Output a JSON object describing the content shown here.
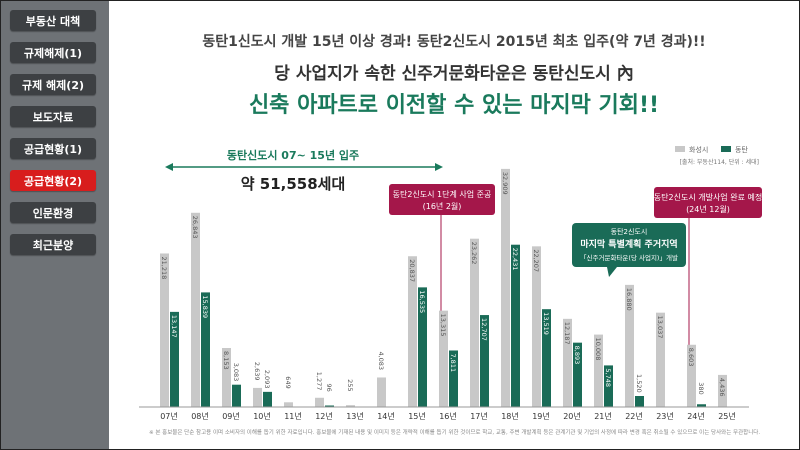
{
  "sidebar": {
    "items": [
      {
        "label": "부동산 대책",
        "active": false
      },
      {
        "label": "규제해제(1)",
        "active": false
      },
      {
        "label": "규제 해제(2)",
        "active": false
      },
      {
        "label": "보도자료",
        "active": false
      },
      {
        "label": "공급현황(1)",
        "active": false
      },
      {
        "label": "공급현황(2)",
        "active": true
      },
      {
        "label": "인문환경",
        "active": false
      },
      {
        "label": "최근분양",
        "active": false
      }
    ]
  },
  "headline": {
    "line1": "동탄1신도시 개발 15년 이상 경과! 동탄2신도시 2015년 최초 입주(약 7년 경과)!!",
    "line2": "당 사업지가 속한 신주거문화타운은 동탄신도시 內",
    "line3": "신축 아파트로 이전할 수 있는 마지막 기회!!"
  },
  "colors": {
    "hwaseong": "#c8c8c8",
    "dongtan": "#1a6b57",
    "callout": "#a4174a",
    "accent_text": "#1a7a5c"
  },
  "chart_data": {
    "type": "bar",
    "categories": [
      "07년",
      "08년",
      "09년",
      "10년",
      "11년",
      "12년",
      "13년",
      "14년",
      "15년",
      "16년",
      "17년",
      "18년",
      "19년",
      "20년",
      "21년",
      "22년",
      "23년",
      "24년",
      "25년"
    ],
    "series": [
      {
        "name": "화성시",
        "values": [
          21218,
          26843,
          8153,
          2639,
          649,
          1277,
          255,
          4083,
          20837,
          13315,
          23262,
          32909,
          22207,
          12187,
          10008,
          16880,
          13037,
          8603,
          4436
        ]
      },
      {
        "name": "동탄",
        "values": [
          13147,
          15839,
          3083,
          2093,
          null,
          96,
          null,
          null,
          16535,
          7811,
          12707,
          22431,
          13519,
          8893,
          5748,
          1520,
          null,
          380,
          null
        ]
      }
    ],
    "value_labels": {
      "화성시": [
        "21,218",
        "26,843",
        "8,153",
        "2,639",
        "649",
        "1,277",
        "255",
        "4,083",
        "20,837",
        "13,315",
        "23,262",
        "32,909",
        "22,207",
        "12,187",
        "10,008",
        "16,880",
        "13,037",
        "8,603",
        "4,436"
      ],
      "동탄": [
        "13,147",
        "15,839",
        "3,083",
        "2,093",
        "",
        "96",
        "",
        "",
        "16,535",
        "7,811",
        "12,707",
        "22,431",
        "13,519",
        "8,893",
        "5,748",
        "1,520",
        "",
        "380",
        ""
      ]
    },
    "ylim": [
      0,
      34000
    ],
    "legend": {
      "items": [
        "화성시",
        "동탄"
      ],
      "placement": "top-right"
    },
    "source_note": "[출처: 부동산114, 단위 : 세대]",
    "period_label": "동탄신도시 07~ 15년 입주",
    "period_value": "약 51,558세대",
    "callouts": [
      {
        "text_line1": "동탄2신도시 1단계 사업 준공",
        "text_line2": "(16년 2월)",
        "category": "16년"
      },
      {
        "text_line1": "동탄2신도시 개발사업 완료 예정",
        "text_line2": "(24년 12월)",
        "category": "24년"
      }
    ],
    "green_callout": {
      "line1": "동탄2신도시",
      "line2": "마지막 특별계획 주거지역",
      "line3": "「신주거문화타운(당 사업지)」개발"
    },
    "footnote": "※ 본 홍보물은 단순 참고용 이며 소비자의 이해를 돕기 위한 자료입니다. 홍보물에 기재된 내용 및 이미지 등은 개략적 이해를 돕기 위한 것이므로 학교, 교통, 주변 개발계획 등은 관계기관 및 기업의 사정에 따라 변경 혹은 취소될 수 있으므로 이는 당사와는 무관합니다."
  }
}
